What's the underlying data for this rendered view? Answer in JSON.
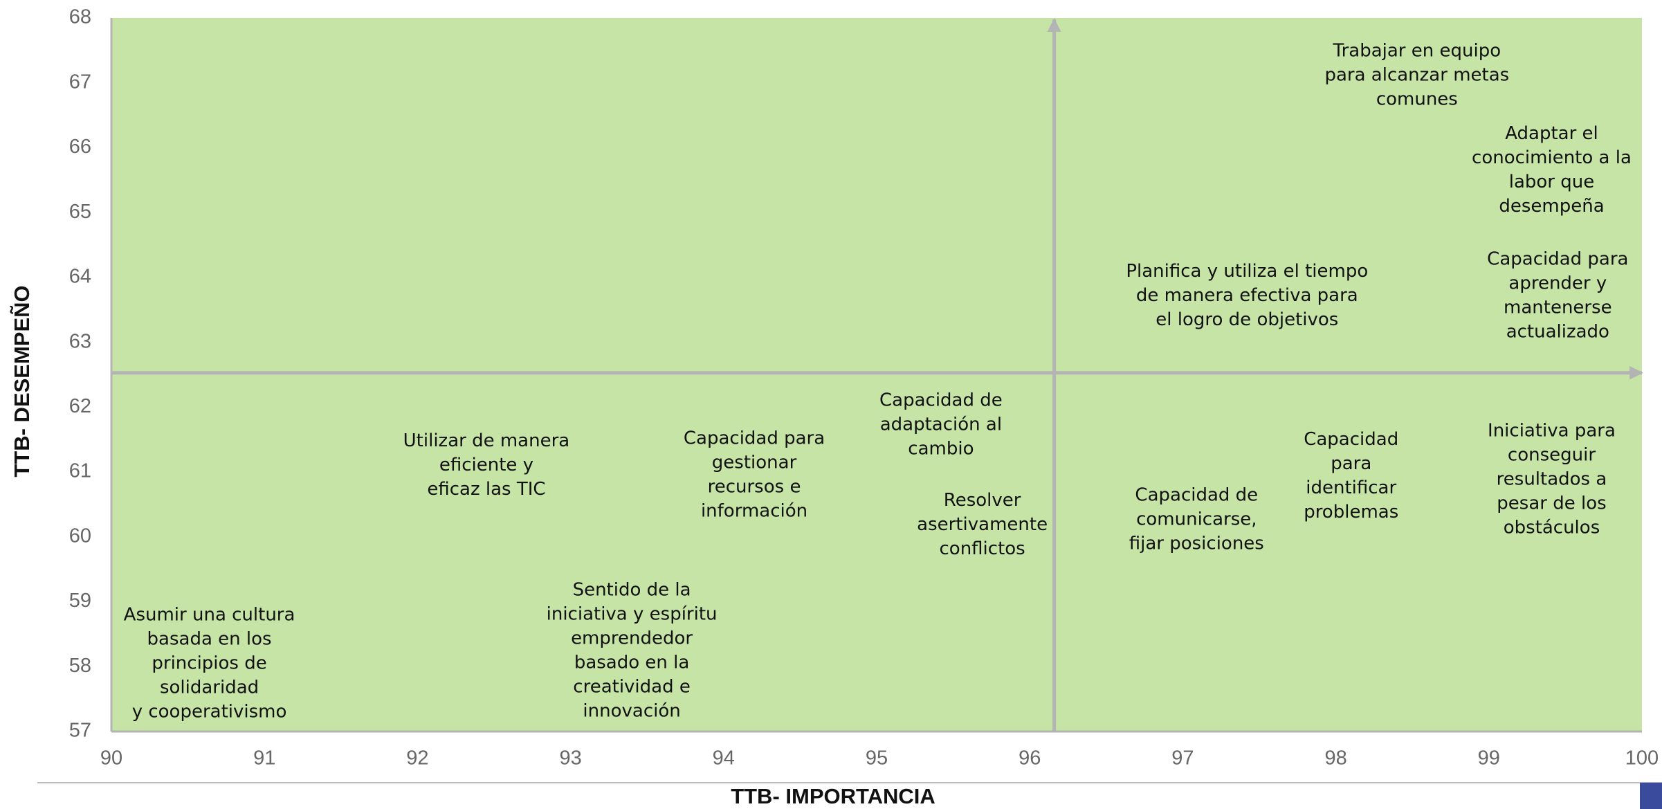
{
  "chart_data": {
    "type": "scatter",
    "xlabel": "TTB-  IMPORTANCIA",
    "ylabel": "TTB- DESEMPEÑO",
    "xlim": [
      90,
      100
    ],
    "xticks": [
      90,
      91,
      92,
      93,
      94,
      95,
      96,
      97,
      98,
      99,
      100
    ],
    "ylim": [
      57,
      68
    ],
    "yticks": [
      57,
      58,
      59,
      60,
      61,
      62,
      63,
      64,
      65,
      66,
      67,
      68
    ],
    "background": "#c6e4a5",
    "divider_color": "#b4b4b4",
    "x_divider": 96.16,
    "y_divider": 62.53,
    "points": [
      {
        "x": 98.53,
        "y": 67.12,
        "label": [
          "Trabajar en equipo",
          "para alcanzar metas",
          "comunes"
        ]
      },
      {
        "x": 99.41,
        "y": 65.66,
        "label": [
          "Adaptar el",
          "conocimiento a la",
          "labor que",
          "desempeña"
        ]
      },
      {
        "x": 99.45,
        "y": 63.72,
        "label": [
          "Capacidad para",
          "aprender y",
          "mantenerse",
          "actualizado"
        ]
      },
      {
        "x": 97.42,
        "y": 63.72,
        "label": [
          "Planifica y utiliza el tiempo",
          "de manera efectiva para",
          "el logro de objetivos"
        ]
      },
      {
        "x": 95.42,
        "y": 61.73,
        "label": [
          "Capacidad de",
          "adaptación al",
          "cambio"
        ]
      },
      {
        "x": 92.45,
        "y": 61.11,
        "label": [
          "Utilizar de manera",
          "eficiente y",
          "eficaz las TIC"
        ]
      },
      {
        "x": 94.2,
        "y": 60.96,
        "label": [
          "Capacidad para",
          "gestionar",
          "recursos e",
          "información"
        ]
      },
      {
        "x": 95.69,
        "y": 60.19,
        "label": [
          "Resolver",
          "asertivamente",
          "conflictos"
        ]
      },
      {
        "x": 97.09,
        "y": 60.27,
        "label": [
          "Capacidad de",
          "comunicarse,",
          "fijar posiciones"
        ]
      },
      {
        "x": 98.1,
        "y": 60.94,
        "label": [
          "Capacidad",
          "para",
          "identificar",
          "problemas"
        ]
      },
      {
        "x": 99.41,
        "y": 60.89,
        "label": [
          "Iniciativa para",
          "conseguir",
          "resultados a",
          "pesar de los",
          "obstáculos"
        ]
      },
      {
        "x": 93.4,
        "y": 58.25,
        "label": [
          "Sentido de la",
          "iniciativa y espíritu",
          "emprendedor",
          "basado en la",
          "creatividad e",
          "innovación"
        ]
      },
      {
        "x": 90.64,
        "y": 58.05,
        "label": [
          "Asumir una cultura",
          "basada en los",
          "principios de",
          "solidaridad",
          "y cooperativismo"
        ]
      }
    ]
  }
}
